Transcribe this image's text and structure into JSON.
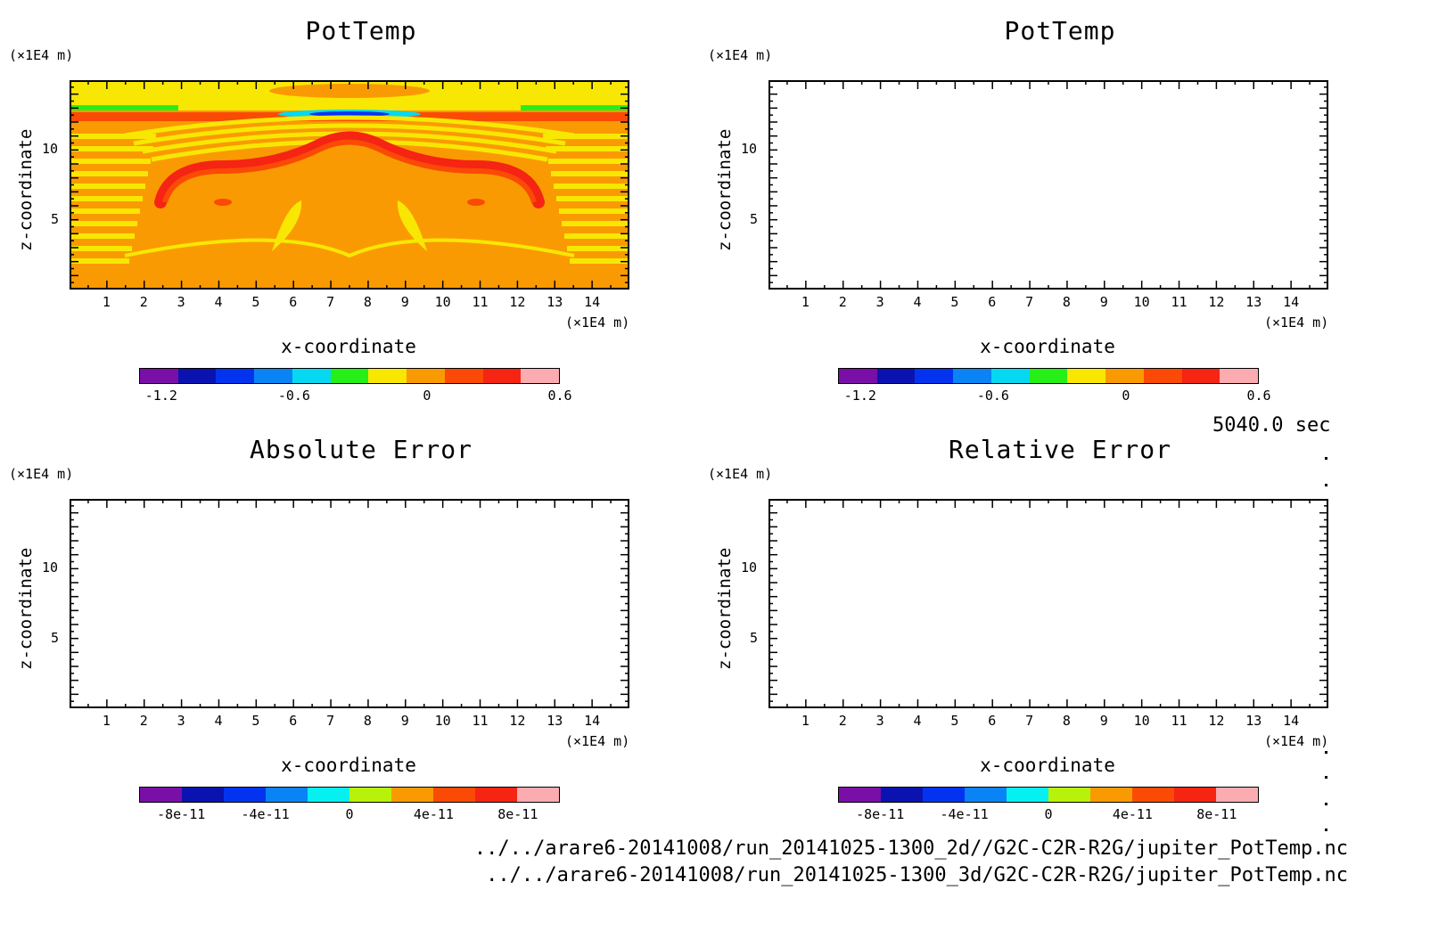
{
  "time_label": "5040.0 sec",
  "file_paths": [
    "../../arare6-20141008/run_20141025-1300_2d//G2C-C2R-R2G/jupiter_PotTemp.nc",
    "../../arare6-20141008/run_20141025-1300_3d/G2C-C2R-R2G/jupiter_PotTemp.nc"
  ],
  "chart_data": [
    {
      "type": "heatmap",
      "title": "PotTemp",
      "xlabel": "x-coordinate",
      "ylabel": "z-coordinate",
      "x_unit": "(×1E4 m)",
      "y_unit": "(×1E4 m)",
      "xlim": [
        0,
        15
      ],
      "ylim": [
        0,
        15
      ],
      "x_ticks": [
        1,
        2,
        3,
        4,
        5,
        6,
        7,
        8,
        9,
        10,
        11,
        12,
        13,
        14
      ],
      "y_ticks": [
        5,
        10
      ],
      "colorbar": {
        "colors": [
          "#7a0fa8",
          "#0a13b0",
          "#0433f0",
          "#0a84f5",
          "#06d8f2",
          "#26ef18",
          "#f8e702",
          "#fa9a02",
          "#fa4a06",
          "#f52413",
          "#fbacb0"
        ],
        "tick_labels": [
          "-1.2",
          "-0.6",
          "0",
          "0.6"
        ],
        "tick_values": [
          -1.2,
          -0.6,
          0,
          0.6
        ],
        "range": [
          -1.3,
          0.6
        ]
      },
      "field": "symmetric plume: dominant orange (0 to 0.2), yellow bands, red arc near z=9-10, green/blue layer near z=12"
    },
    {
      "type": "heatmap",
      "title": "PotTemp",
      "xlabel": "x-coordinate",
      "ylabel": "z-coordinate",
      "x_unit": "(×1E4 m)",
      "y_unit": "(×1E4 m)",
      "xlim": [
        0,
        15
      ],
      "ylim": [
        0,
        15
      ],
      "x_ticks": [
        1,
        2,
        3,
        4,
        5,
        6,
        7,
        8,
        9,
        10,
        11,
        12,
        13,
        14
      ],
      "y_ticks": [
        5,
        10
      ],
      "colorbar": {
        "colors": [
          "#7a0fa8",
          "#0a13b0",
          "#0433f0",
          "#0a84f5",
          "#06d8f2",
          "#26ef18",
          "#f8e702",
          "#fa9a02",
          "#fa4a06",
          "#f52413",
          "#fbacb0"
        ],
        "tick_labels": [
          "-1.2",
          "-0.6",
          "0",
          "0.6"
        ],
        "tick_values": [
          -1.2,
          -0.6,
          0,
          0.6
        ],
        "range": [
          -1.3,
          0.6
        ]
      }
    },
    {
      "type": "heatmap",
      "title": "Absolute Error",
      "xlabel": "x-coordinate",
      "ylabel": "z-coordinate",
      "x_unit": "(×1E4 m)",
      "y_unit": "(×1E4 m)",
      "xlim": [
        0,
        15
      ],
      "ylim": [
        0,
        15
      ],
      "x_ticks": [
        1,
        2,
        3,
        4,
        5,
        6,
        7,
        8,
        9,
        10,
        11,
        12,
        13,
        14
      ],
      "y_ticks": [
        5,
        10
      ],
      "colorbar": {
        "colors": [
          "#7a0fa8",
          "#0a13b0",
          "#0433f0",
          "#0a84f5",
          "#06f0f0",
          "#b8f20a",
          "#fa9a02",
          "#fa4a06",
          "#f52413",
          "#fbacb0"
        ],
        "tick_labels": [
          "-8e-11",
          "-4e-11",
          "0",
          "4e-11",
          "8e-11"
        ],
        "tick_values": [
          -8e-11,
          -4e-11,
          0,
          4e-11,
          8e-11
        ],
        "range": [
          -1e-10,
          1e-10
        ]
      },
      "field": "empty (all zero)"
    },
    {
      "type": "heatmap",
      "title": "Relative Error",
      "xlabel": "x-coordinate",
      "ylabel": "z-coordinate",
      "x_unit": "(×1E4 m)",
      "y_unit": "(×1E4 m)",
      "xlim": [
        0,
        15
      ],
      "ylim": [
        0,
        15
      ],
      "x_ticks": [
        1,
        2,
        3,
        4,
        5,
        6,
        7,
        8,
        9,
        10,
        11,
        12,
        13,
        14
      ],
      "y_ticks": [
        5,
        10
      ],
      "colorbar": {
        "colors": [
          "#7a0fa8",
          "#0a13b0",
          "#0433f0",
          "#0a84f5",
          "#06f0f0",
          "#b8f20a",
          "#fa9a02",
          "#fa4a06",
          "#f52413",
          "#fbacb0"
        ],
        "tick_labels": [
          "-8e-11",
          "-4e-11",
          "0",
          "4e-11",
          "8e-11"
        ],
        "tick_values": [
          -8e-11,
          -4e-11,
          0,
          4e-11,
          8e-11
        ],
        "range": [
          -1e-10,
          1e-10
        ]
      },
      "field": "empty (all zero)"
    }
  ]
}
